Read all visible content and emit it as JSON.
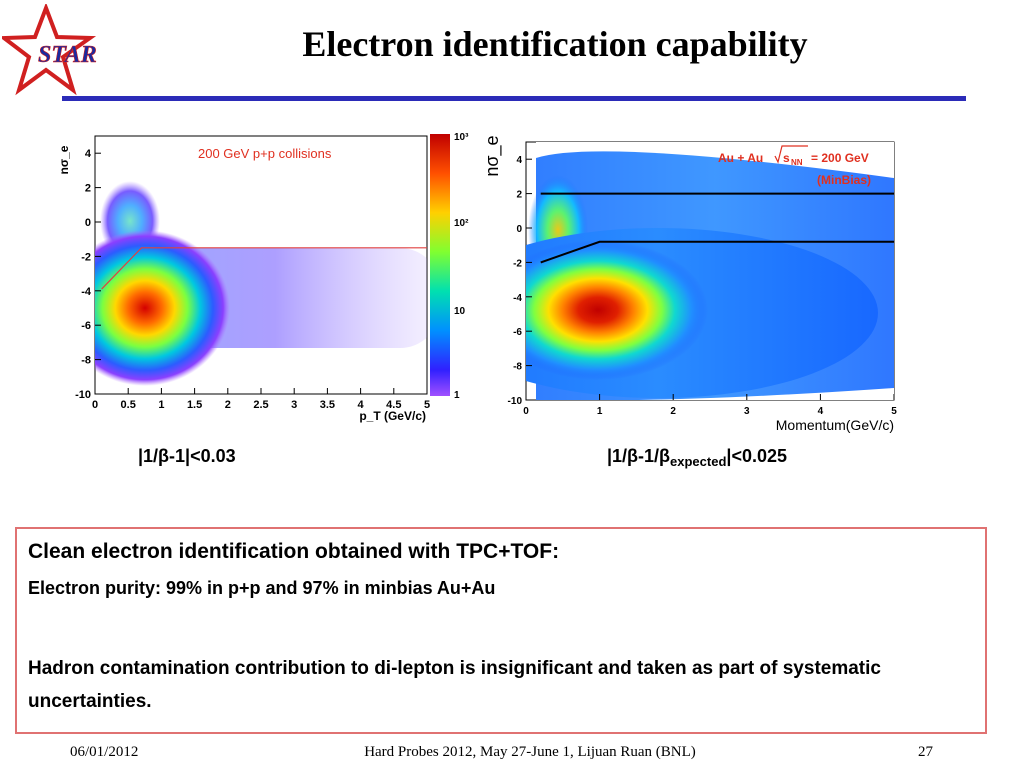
{
  "slide": {
    "title": "Electron identification capability",
    "logo_text": "STAR",
    "caption_left": "|1/β-1|<0.03",
    "caption_right_main": "|1/β-1/β",
    "caption_right_sub": "expected",
    "caption_right_tail": "|<0.025",
    "box_headline": "Clean electron identification obtained with TPC+TOF:",
    "box_line1": "Electron purity: 99% in p+p and 97% in minbias Au+Au",
    "box_line2": "Hadron contamination contribution to di-lepton is insignificant and taken as part of systematic uncertainties.",
    "footer_date": "06/01/2012",
    "footer_center": "Hard Probes 2012, May 27-June 1, Lijuan Ruan (BNL)",
    "footer_page": "27"
  },
  "colors": {
    "title_rule": "#2b2bb8",
    "box_border": "#e07272",
    "cut_line_left": "#e04040",
    "cut_line_right": "#000000",
    "annotation": "#e03020"
  },
  "chart_data": [
    {
      "type": "heatmap",
      "title": "200 GeV p+p collisions",
      "xlabel": "p_T (GeV/c)",
      "ylabel": "nσ_e",
      "xlim": [
        0,
        5
      ],
      "ylim": [
        -10,
        5
      ],
      "xticks": [
        "0",
        "0.5",
        "1",
        "1.5",
        "2",
        "2.5",
        "3",
        "3.5",
        "4",
        "4.5",
        "5"
      ],
      "yticks": [
        "4",
        "2",
        "0",
        "-2",
        "-4",
        "-6",
        "-8",
        "-10"
      ],
      "colorbar": {
        "scale": "log",
        "labels": [
          "10³",
          "10²",
          "10",
          "1"
        ]
      },
      "hadron_band": {
        "center_y": -5.5
      },
      "electron_band": {
        "center_y": 0
      },
      "cut_line": [
        [
          0.1,
          -3.9
        ],
        [
          0.7,
          -1.5
        ],
        [
          5,
          -1.5
        ]
      ]
    },
    {
      "type": "heatmap",
      "title": "Au + Au √s_NN = 200 GeV (MinBias)",
      "title_line1": "Au + Au",
      "title_sqrt": "s",
      "title_sub": "NN",
      "title_tail": "= 200 GeV",
      "title_line2": "(MinBias)",
      "xlabel": "Momentum(GeV/c)",
      "ylabel": "nσ_e",
      "xlim": [
        0,
        5
      ],
      "ylim": [
        -10,
        5
      ],
      "xticks": [
        "0",
        "1",
        "2",
        "3",
        "4",
        "5"
      ],
      "yticks": [
        "4",
        "2",
        "0",
        "-2",
        "-4",
        "-6",
        "-8",
        "-10"
      ],
      "hadron_band": {
        "center_y": -5
      },
      "electron_band": {
        "center_y": 0
      },
      "upper_cut": [
        [
          0.2,
          2
        ],
        [
          5,
          2
        ]
      ],
      "lower_cut": [
        [
          0.2,
          -2
        ],
        [
          1,
          -0.8
        ],
        [
          5,
          -0.8
        ]
      ]
    }
  ]
}
